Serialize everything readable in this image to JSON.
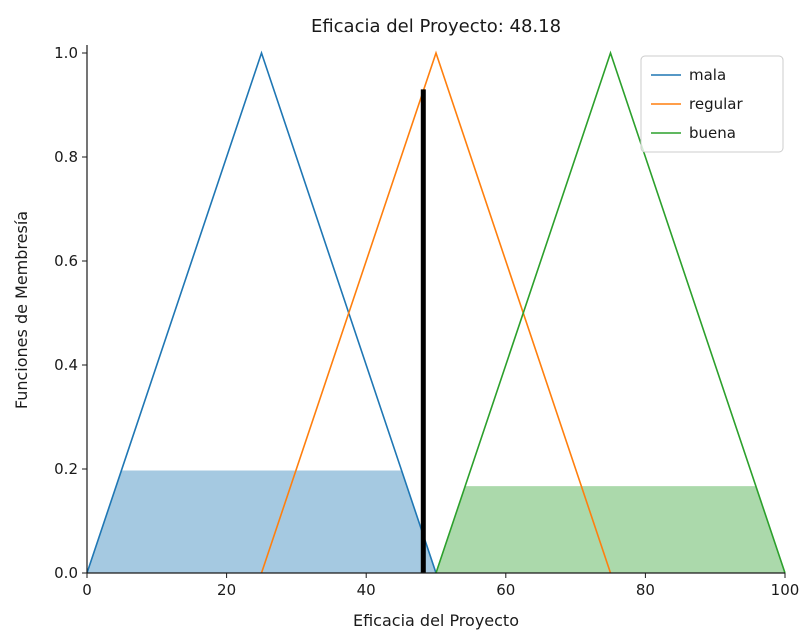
{
  "chart_data": {
    "type": "line",
    "title": "Eficacia del Proyecto: 48.18",
    "xlabel": "Eficacia del Proyecto",
    "ylabel": "Funciones de Membresía",
    "xlim": [
      0,
      100
    ],
    "ylim": [
      0,
      1.0
    ],
    "x_ticks": [
      0,
      20,
      40,
      60,
      80,
      100
    ],
    "y_ticks": [
      0.0,
      0.2,
      0.4,
      0.6,
      0.8,
      1.0
    ],
    "x_tick_labels": [
      "0",
      "20",
      "40",
      "60",
      "80",
      "100"
    ],
    "y_tick_labels": [
      "0.0",
      "0.2",
      "0.4",
      "0.6",
      "0.8",
      "1.0"
    ],
    "grid": false,
    "legend_position": "top-right",
    "series": [
      {
        "name": "mala",
        "color": "#1f77b4",
        "x": [
          0,
          25,
          50
        ],
        "y": [
          0,
          1,
          0
        ]
      },
      {
        "name": "regular",
        "color": "#ff7f0e",
        "x": [
          25,
          50,
          75
        ],
        "y": [
          0,
          1,
          0
        ]
      },
      {
        "name": "buena",
        "color": "#2ca02c",
        "x": [
          50,
          75,
          100
        ],
        "y": [
          0,
          1,
          0
        ]
      }
    ],
    "activations": [
      {
        "series": "mala",
        "level": 0.197,
        "x": [
          0,
          4.93,
          45.07,
          50
        ],
        "y": [
          0,
          0.197,
          0.197,
          0
        ],
        "color": "#1f77b4"
      },
      {
        "series": "buena",
        "level": 0.167,
        "x": [
          50,
          54.17,
          95.83,
          100
        ],
        "y": [
          0,
          0.167,
          0.167,
          0
        ],
        "color": "#2ca02c"
      }
    ],
    "output_line": {
      "x": 48.18,
      "y_top": 0.93,
      "color": "#000000"
    }
  }
}
